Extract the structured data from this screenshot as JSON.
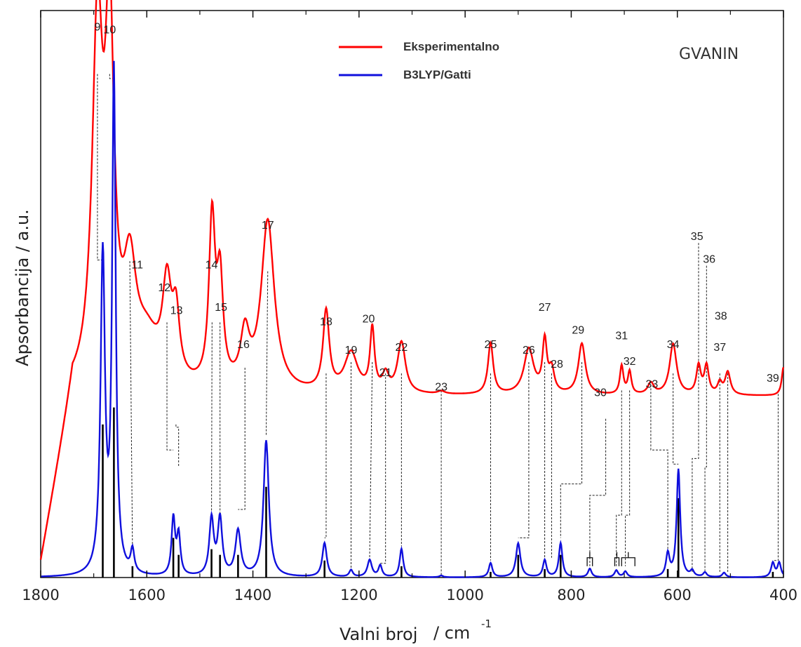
{
  "chart_data": {
    "type": "line",
    "title": "GVANIN",
    "xlabel": "Valni broj",
    "xlabel_unit": "/ cm",
    "xlabel_unit_exp": "-1",
    "ylabel": "Apsorbancija / a.u.",
    "xlim": [
      1800,
      400
    ],
    "x_reversed": true,
    "ylim": [
      0,
      1
    ],
    "y_ticks_labeled": false,
    "grid": false,
    "legend_position": "top-center",
    "x_ticks": [
      "1800",
      "1600",
      "1400",
      "1200",
      "1000",
      "800",
      "600",
      "400"
    ],
    "colors": {
      "experimental": "#ff0000",
      "calculated": "#1010dd",
      "sticks": "#000000"
    },
    "series": [
      {
        "name": "Eksperimentalno",
        "baseline": 0.32,
        "baseline_slope": 0.0,
        "rise_start": 1800,
        "peaks": [
          [
            1693,
            0.62,
            12
          ],
          [
            1670,
            0.6,
            10
          ],
          [
            1632,
            0.18,
            14
          ],
          [
            1600,
            0.08,
            30
          ],
          [
            1562,
            0.16,
            10
          ],
          [
            1545,
            0.11,
            8
          ],
          [
            1477,
            0.29,
            7
          ],
          [
            1462,
            0.18,
            7
          ],
          [
            1415,
            0.09,
            10
          ],
          [
            1372,
            0.3,
            15
          ],
          [
            1262,
            0.14,
            7
          ],
          [
            1215,
            0.07,
            15
          ],
          [
            1175,
            0.11,
            5
          ],
          [
            1150,
            0.03,
            7
          ],
          [
            1120,
            0.09,
            9
          ],
          [
            1045,
            0.005,
            8
          ],
          [
            952,
            0.09,
            6
          ],
          [
            880,
            0.08,
            11
          ],
          [
            850,
            0.09,
            5
          ],
          [
            837,
            0.04,
            6
          ],
          [
            780,
            0.09,
            8
          ],
          [
            735,
            0.0,
            6
          ],
          [
            705,
            0.05,
            4
          ],
          [
            690,
            0.04,
            4
          ],
          [
            650,
            0.02,
            7
          ],
          [
            608,
            0.09,
            8
          ],
          [
            560,
            0.05,
            5
          ],
          [
            545,
            0.05,
            5
          ],
          [
            520,
            0.02,
            5
          ],
          [
            505,
            0.04,
            6
          ],
          [
            400,
            0.05,
            4
          ]
        ]
      },
      {
        "name": "B3LYP/Gatti",
        "baseline": 0.0,
        "peaks": [
          [
            1683,
            0.56,
            5
          ],
          [
            1662,
            0.88,
            4
          ],
          [
            1627,
            0.04,
            4
          ],
          [
            1550,
            0.1,
            4
          ],
          [
            1540,
            0.07,
            4
          ],
          [
            1478,
            0.1,
            5
          ],
          [
            1462,
            0.1,
            5
          ],
          [
            1428,
            0.08,
            6
          ],
          [
            1375,
            0.24,
            6
          ],
          [
            1265,
            0.06,
            5
          ],
          [
            1215,
            0.012,
            4
          ],
          [
            1180,
            0.03,
            5
          ],
          [
            1160,
            0.02,
            4
          ],
          [
            1120,
            0.05,
            4
          ],
          [
            1045,
            0.003,
            4
          ],
          [
            952,
            0.025,
            4
          ],
          [
            900,
            0.06,
            5
          ],
          [
            850,
            0.03,
            4
          ],
          [
            820,
            0.06,
            4
          ],
          [
            765,
            0.015,
            4
          ],
          [
            715,
            0.012,
            4
          ],
          [
            698,
            0.01,
            4
          ],
          [
            618,
            0.04,
            4
          ],
          [
            598,
            0.19,
            4
          ],
          [
            572,
            0.01,
            4
          ],
          [
            548,
            0.008,
            4
          ],
          [
            512,
            0.008,
            4
          ],
          [
            420,
            0.025,
            4
          ],
          [
            408,
            0.025,
            4
          ]
        ]
      }
    ],
    "sticks": [
      [
        1683,
        0.27
      ],
      [
        1662,
        0.3
      ],
      [
        1627,
        0.02
      ],
      [
        1550,
        0.07
      ],
      [
        1540,
        0.04
      ],
      [
        1478,
        0.05
      ],
      [
        1462,
        0.04
      ],
      [
        1428,
        0.04
      ],
      [
        1375,
        0.16
      ],
      [
        1265,
        0.03
      ],
      [
        1120,
        0.02
      ],
      [
        952,
        0.01
      ],
      [
        900,
        0.04
      ],
      [
        850,
        0.015
      ],
      [
        820,
        0.04
      ],
      [
        618,
        0.015
      ],
      [
        598,
        0.14
      ],
      [
        420,
        0.01
      ]
    ],
    "annotations": [
      {
        "label": "9",
        "x": 1693,
        "y": 0.965
      },
      {
        "label": "10",
        "x": 1670,
        "y": 0.96
      },
      {
        "label": "11",
        "x": 1618,
        "y": 0.545
      },
      {
        "label": "12",
        "x": 1567,
        "y": 0.505
      },
      {
        "label": "13",
        "x": 1544,
        "y": 0.465
      },
      {
        "label": "14",
        "x": 1478,
        "y": 0.545
      },
      {
        "label": "15",
        "x": 1460,
        "y": 0.47
      },
      {
        "label": "16",
        "x": 1418,
        "y": 0.405
      },
      {
        "label": "17",
        "x": 1372,
        "y": 0.615
      },
      {
        "label": "18",
        "x": 1262,
        "y": 0.445
      },
      {
        "label": "19",
        "x": 1215,
        "y": 0.395
      },
      {
        "label": "20",
        "x": 1182,
        "y": 0.45
      },
      {
        "label": "21",
        "x": 1150,
        "y": 0.355
      },
      {
        "label": "22",
        "x": 1120,
        "y": 0.4
      },
      {
        "label": "23",
        "x": 1045,
        "y": 0.33
      },
      {
        "label": "25",
        "x": 952,
        "y": 0.405
      },
      {
        "label": "26",
        "x": 880,
        "y": 0.395
      },
      {
        "label": "27",
        "x": 850,
        "y": 0.47
      },
      {
        "label": "28",
        "x": 827,
        "y": 0.37
      },
      {
        "label": "29",
        "x": 787,
        "y": 0.43
      },
      {
        "label": "30",
        "x": 745,
        "y": 0.32
      },
      {
        "label": "31",
        "x": 705,
        "y": 0.42
      },
      {
        "label": "32",
        "x": 690,
        "y": 0.375
      },
      {
        "label": "33",
        "x": 648,
        "y": 0.335
      },
      {
        "label": "34",
        "x": 608,
        "y": 0.405
      },
      {
        "label": "35",
        "x": 563,
        "y": 0.595
      },
      {
        "label": "36",
        "x": 540,
        "y": 0.555
      },
      {
        "label": "37",
        "x": 520,
        "y": 0.4
      },
      {
        "label": "38",
        "x": 518,
        "y": 0.455
      },
      {
        "label": "39",
        "x": 420,
        "y": 0.345
      }
    ],
    "connectors": [
      {
        "top": [
          1693,
          0.888
        ],
        "bottom": [
          1683,
          0.56
        ],
        "elbow_y": 0.56
      },
      {
        "top": [
          1670,
          0.888
        ],
        "bottom": [
          1662,
          0.88
        ],
        "elbow_y": 0.88
      },
      {
        "top": [
          1632,
          0.558
        ],
        "bottom": [
          1627,
          0.05
        ]
      },
      {
        "top": [
          1562,
          0.45
        ],
        "bottom": [
          1550,
          0.225
        ],
        "elbow_y": 0.225
      },
      {
        "top": [
          1545,
          0.27
        ],
        "bottom": [
          1540,
          0.195
        ],
        "elbow_y": 0.265
      },
      {
        "top": [
          1477,
          0.45
        ],
        "bottom": [
          1478,
          0.11
        ]
      },
      {
        "top": [
          1462,
          0.45
        ],
        "bottom": [
          1462,
          0.11
        ]
      },
      {
        "top": [
          1415,
          0.37
        ],
        "bottom": [
          1428,
          0.12
        ],
        "elbow_y": 0.12
      },
      {
        "top": [
          1372,
          0.54
        ],
        "bottom": [
          1375,
          0.25
        ]
      },
      {
        "top": [
          1262,
          0.36
        ],
        "bottom": [
          1265,
          0.07
        ],
        "elbow_y": 0.07
      },
      {
        "top": [
          1215,
          0.38
        ],
        "bottom": [
          1215,
          0.015
        ]
      },
      {
        "top": [
          1175,
          0.38
        ],
        "bottom": [
          1180,
          0.035
        ]
      },
      {
        "top": [
          1150,
          0.36
        ],
        "bottom": [
          1160,
          0.025
        ],
        "elbow_y": 0.025
      },
      {
        "top": [
          1120,
          0.36
        ],
        "bottom": [
          1120,
          0.055
        ]
      },
      {
        "top": [
          1045,
          0.33
        ],
        "bottom": [
          1045,
          0.005
        ]
      },
      {
        "top": [
          952,
          0.36
        ],
        "bottom": [
          952,
          0.03
        ]
      },
      {
        "top": [
          880,
          0.38
        ],
        "bottom": [
          900,
          0.07
        ],
        "elbow_y": 0.07
      },
      {
        "top": [
          850,
          0.38
        ],
        "bottom": [
          850,
          0.035
        ]
      },
      {
        "top": [
          837,
          0.36
        ],
        "bottom": [
          837,
          0.035
        ]
      },
      {
        "top": [
          780,
          0.38
        ],
        "bottom": [
          820,
          0.07
        ],
        "elbow_y": 0.165
      },
      {
        "top": [
          735,
          0.28
        ],
        "bottom": [
          765,
          0.02
        ],
        "elbow_y": 0.145
      },
      {
        "top": [
          705,
          0.33
        ],
        "bottom": [
          715,
          0.02
        ],
        "elbow_y": 0.11
      },
      {
        "top": [
          690,
          0.33
        ],
        "bottom": [
          698,
          0.02
        ],
        "elbow_y": 0.11
      },
      {
        "top": [
          650,
          0.34
        ],
        "bottom": [
          618,
          0.05
        ],
        "elbow_y": 0.225
      },
      {
        "top": [
          608,
          0.36
        ],
        "bottom": [
          598,
          0.2
        ],
        "elbow_y": 0.2
      },
      {
        "top": [
          560,
          0.59
        ],
        "bottom": [
          572,
          0.01
        ],
        "elbow_y": 0.21
      },
      {
        "top": [
          545,
          0.55
        ],
        "bottom": [
          548,
          0.01
        ],
        "elbow_y": 0.195
      },
      {
        "top": [
          520,
          0.36
        ],
        "bottom": [
          520,
          0.01
        ]
      },
      {
        "top": [
          505,
          0.36
        ],
        "bottom": [
          505,
          0.01
        ]
      },
      {
        "top": [
          410,
          0.33
        ],
        "bottom": [
          420,
          0.03
        ],
        "elbow_y": 0.03
      }
    ],
    "bracket_groups": [
      [
        770,
        760
      ],
      [
        718,
        710
      ],
      [
        705,
        680
      ]
    ]
  }
}
